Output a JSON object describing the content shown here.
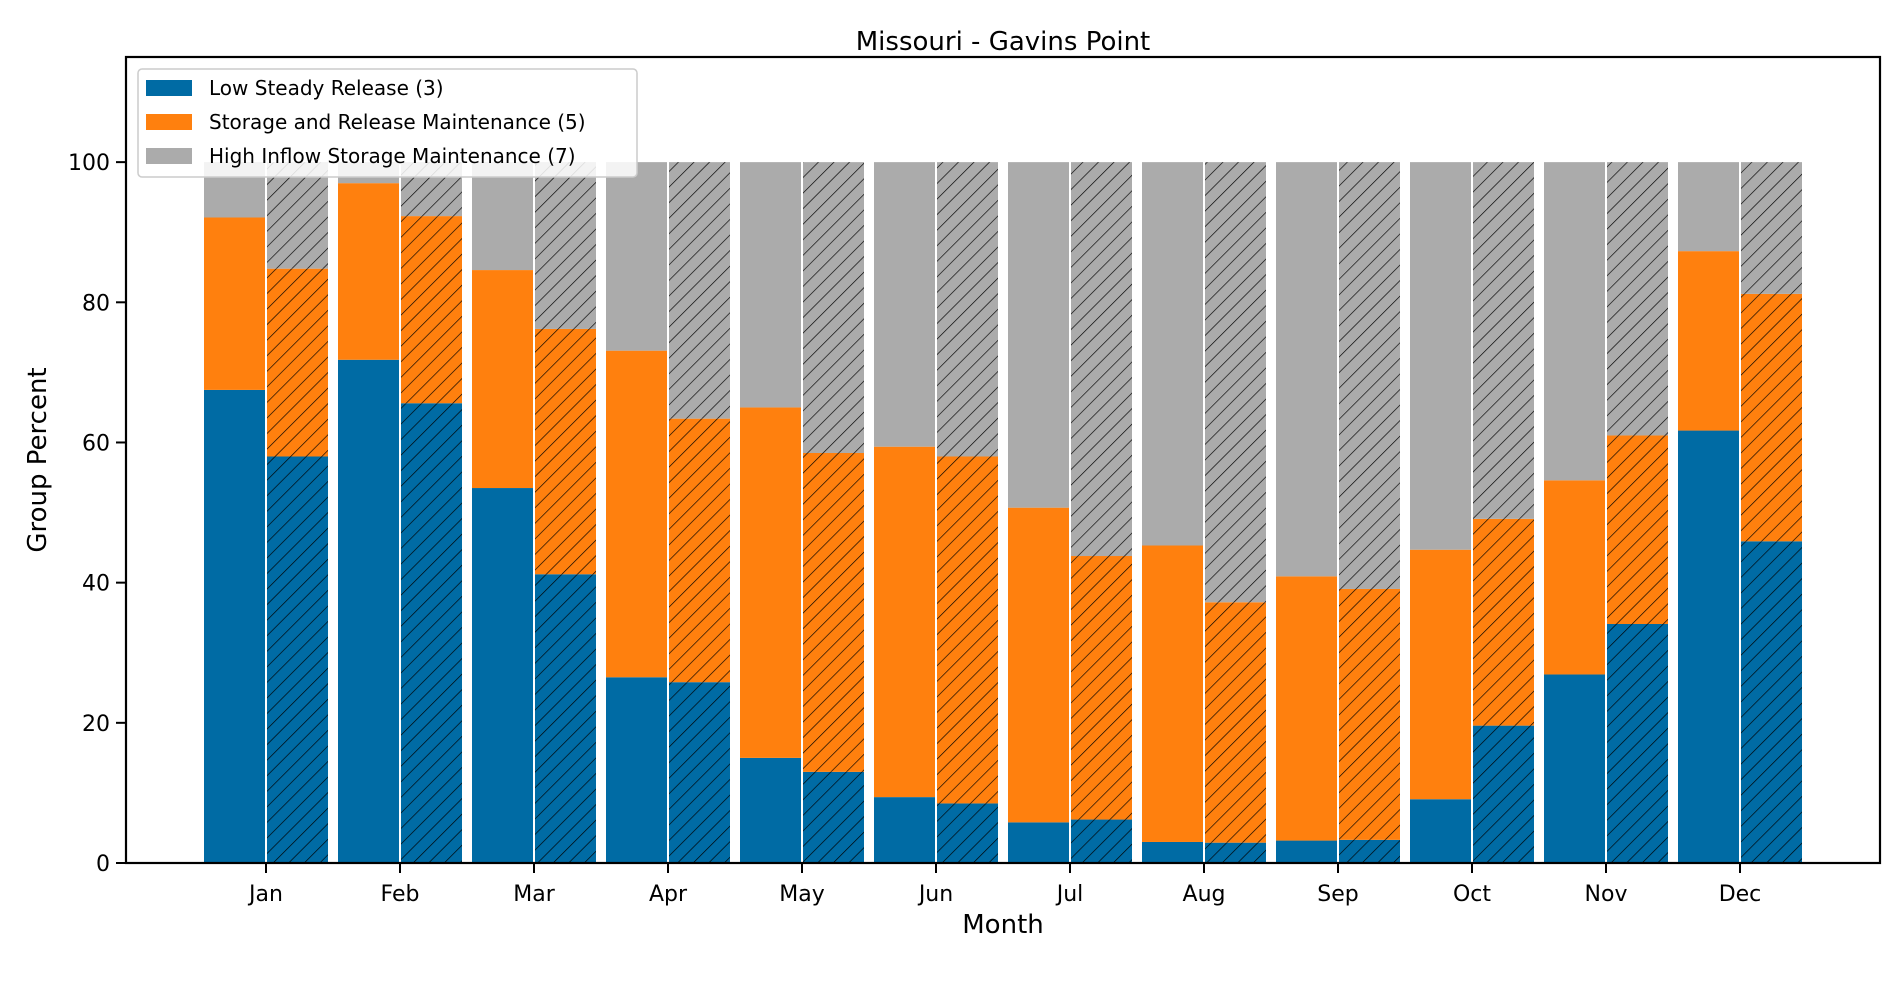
{
  "chart_data": {
    "type": "bar",
    "stacked": true,
    "title": "Missouri - Gavins Point",
    "xlabel": "Month",
    "ylabel": "Group Percent",
    "ylim": [
      0,
      115
    ],
    "yticks": [
      0,
      20,
      40,
      60,
      80,
      100
    ],
    "grid": false,
    "legend_position": "top-left",
    "categories": [
      "Jan",
      "Feb",
      "Mar",
      "Apr",
      "May",
      "Jun",
      "Jul",
      "Aug",
      "Sep",
      "Oct",
      "Nov",
      "Dec"
    ],
    "bars_per_category": [
      {
        "label": "",
        "hatched": false
      },
      {
        "label": "",
        "hatched": true
      }
    ],
    "series": [
      {
        "name": "Low Steady Release (3)",
        "color": "#006ba4",
        "values_plain": [
          67.5,
          71.8,
          53.5,
          26.5,
          15.0,
          9.4,
          5.8,
          3.0,
          3.2,
          9.1,
          26.9,
          61.7
        ],
        "values_hatched": [
          58.0,
          65.6,
          41.2,
          25.8,
          13.0,
          8.5,
          6.2,
          2.9,
          3.3,
          19.6,
          34.1,
          45.9
        ]
      },
      {
        "name": "Storage and Release Maintenance (5)",
        "color": "#ff800e",
        "values_plain": [
          24.6,
          25.2,
          31.1,
          46.6,
          50.0,
          50.0,
          44.9,
          42.3,
          37.7,
          35.6,
          27.7,
          25.6
        ],
        "values_hatched": [
          26.8,
          26.7,
          35.0,
          37.6,
          45.5,
          49.5,
          37.6,
          34.3,
          35.8,
          29.5,
          26.9,
          35.3
        ]
      },
      {
        "name": "High Inflow Storage Maintenance (7)",
        "color": "#ababab",
        "values_plain": [
          7.9,
          3.0,
          15.4,
          26.9,
          35.0,
          40.6,
          49.3,
          54.7,
          59.1,
          55.3,
          45.4,
          12.7
        ],
        "values_hatched": [
          15.2,
          7.7,
          23.8,
          36.6,
          41.5,
          42.0,
          56.2,
          62.8,
          60.9,
          50.9,
          39.0,
          18.8
        ]
      }
    ]
  }
}
